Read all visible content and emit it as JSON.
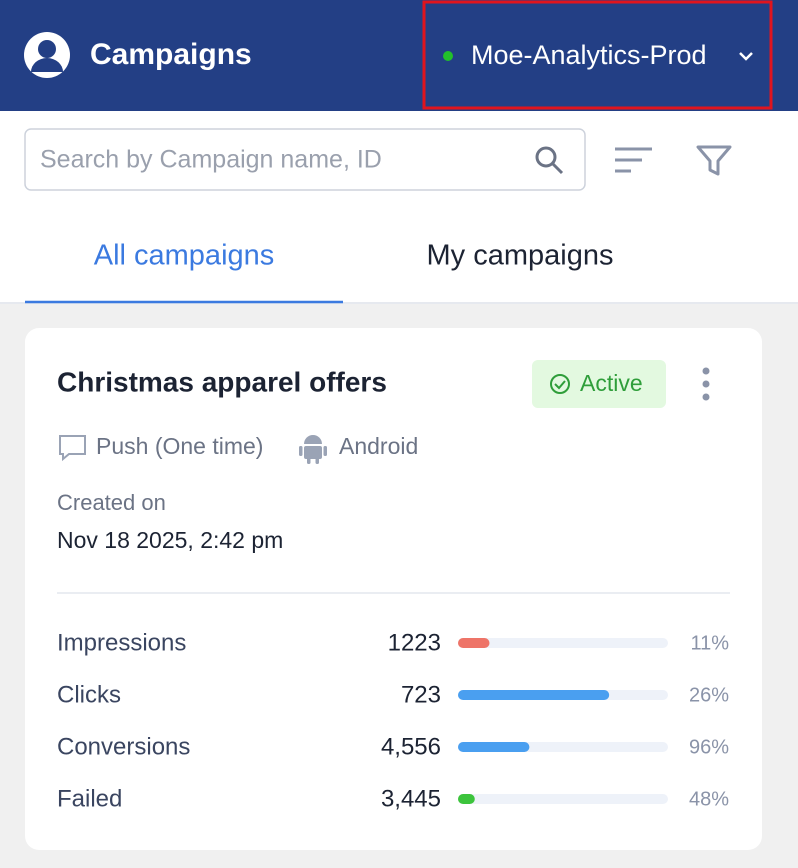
{
  "header": {
    "title": "Campaigns",
    "workspace": "Moe-Analytics-Prod"
  },
  "search": {
    "placeholder": "Search by Campaign name, ID"
  },
  "tabs": [
    "All campaigns",
    "My campaigns"
  ],
  "card": {
    "title": "Christmas apparel offers",
    "status": "Active",
    "channel": "Push (One time)",
    "platform": "Android",
    "created_label": "Created on",
    "created_date": "Nov 18 2025, 2:42 pm",
    "metrics": [
      {
        "label": "Impressions",
        "value": "1223",
        "percent": "11%",
        "bar": 15,
        "color": "#ee7468"
      },
      {
        "label": "Clicks",
        "value": "723",
        "percent": "26%",
        "bar": 72,
        "color": "#4a9ff0"
      },
      {
        "label": "Conversions",
        "value": "4,556",
        "percent": "96%",
        "bar": 34,
        "color": "#4a9ff0"
      },
      {
        "label": "Failed",
        "value": "3,445",
        "percent": "48%",
        "bar": 8,
        "color": "#3cc43c"
      }
    ]
  }
}
